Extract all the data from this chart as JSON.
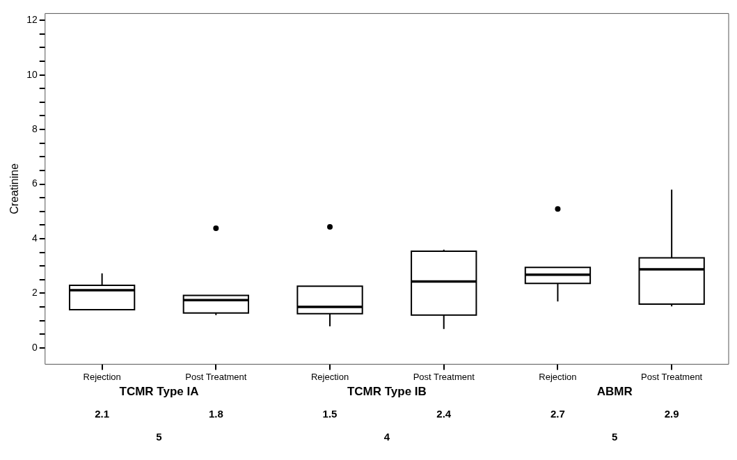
{
  "chart_data": {
    "type": "box",
    "ylabel": "Creatinine",
    "categories": [
      "Rejection",
      "Post Treatment",
      "Rejection",
      "Post Treatment",
      "Rejection",
      "Post Treatment"
    ],
    "boxes": [
      {
        "low": 1.4,
        "q1": 1.4,
        "median": 2.11,
        "q3": 2.29,
        "high": 2.73
      },
      {
        "low": 1.2,
        "q1": 1.28,
        "median": 1.75,
        "q3": 1.92,
        "high": 1.92,
        "outliers": [
          4.38
        ]
      },
      {
        "low": 0.79,
        "q1": 1.25,
        "median": 1.5,
        "q3": 2.26,
        "high": 2.26,
        "outliers": [
          4.43
        ]
      },
      {
        "low": 0.69,
        "q1": 1.2,
        "median": 2.43,
        "q3": 3.54,
        "high": 3.6
      },
      {
        "low": 1.7,
        "q1": 2.36,
        "median": 2.68,
        "q3": 2.95,
        "high": 2.95,
        "outliers": [
          5.09
        ]
      },
      {
        "low": 1.52,
        "q1": 1.6,
        "median": 2.88,
        "q3": 3.3,
        "high": 5.8
      }
    ],
    "value_labels": [
      "2.1",
      "1.8",
      "1.5",
      "2.4",
      "2.7",
      "2.9"
    ],
    "annotations": [
      "TCMR Type IA",
      "TCMR Type IB",
      "ABMR",
      "5",
      "4",
      "5"
    ],
    "color": "#000000",
    "marker": "circle",
    "grid": false,
    "legend": false,
    "ylim": [
      -0.6,
      12.25
    ],
    "yticks": [
      0,
      {
        "value": 0.5,
        "label": null
      },
      {
        "value": 1,
        "label": null
      },
      {
        "value": 1.5,
        "label": null
      },
      2,
      {
        "value": 2.5,
        "label": null
      },
      {
        "value": 3,
        "label": null
      },
      {
        "value": 3.5,
        "label": null
      },
      4,
      {
        "value": 4.5,
        "label": null
      },
      {
        "value": 5,
        "label": null
      },
      {
        "value": 5.5,
        "label": null
      },
      6,
      {
        "value": 6.5,
        "label": null
      },
      {
        "value": 7,
        "label": null
      },
      {
        "value": 7.5,
        "label": null
      },
      8,
      {
        "value": 8.5,
        "label": null
      },
      {
        "value": 9,
        "label": null
      },
      {
        "value": 9.5,
        "label": null
      },
      10,
      {
        "value": 10.5,
        "label": null
      },
      {
        "value": 11,
        "label": null
      },
      {
        "value": 11.5,
        "label": null
      },
      12
    ]
  }
}
